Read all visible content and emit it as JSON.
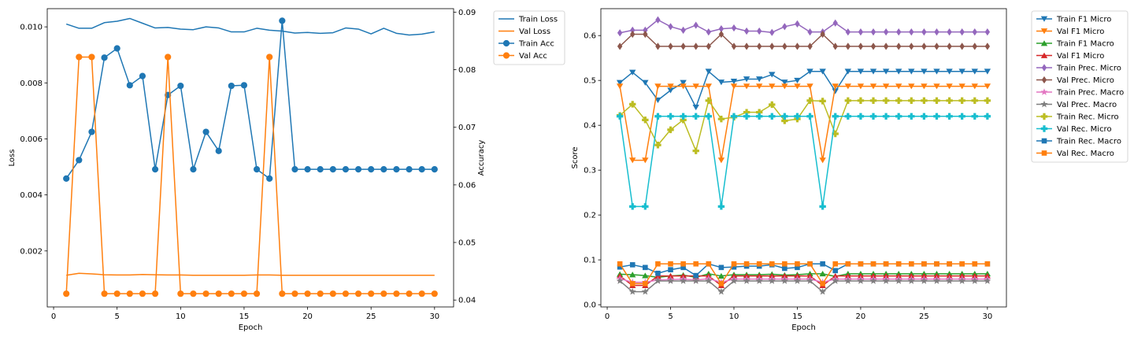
{
  "chart_data": [
    {
      "type": "line",
      "xlabel": "Epoch",
      "ylabel": "Loss",
      "ylabel_right": "Accuracy",
      "xlim": [
        -0.5,
        31.5
      ],
      "ylim": [
        0.0,
        0.01065
      ],
      "ylim_right": [
        0.0388,
        0.0906
      ],
      "xticks": [
        "0",
        "5",
        "10",
        "15",
        "20",
        "25",
        "30"
      ],
      "yticks": [
        "0.002",
        "0.004",
        "0.006",
        "0.008",
        "0.010"
      ],
      "yticks_right": [
        "0.04",
        "0.05",
        "0.06",
        "0.07",
        "0.08",
        "0.09"
      ],
      "legend_position": "outside-top-right",
      "x": [
        1,
        2,
        3,
        4,
        5,
        6,
        7,
        8,
        9,
        10,
        11,
        12,
        13,
        14,
        15,
        16,
        17,
        18,
        19,
        20,
        21,
        22,
        23,
        24,
        25,
        26,
        27,
        28,
        29,
        30
      ],
      "series": [
        {
          "name": "Train Loss",
          "axis": "left",
          "color": "#1f77b4",
          "marker": "none",
          "values": [
            0.0101,
            0.00995,
            0.00995,
            0.01015,
            0.0102,
            0.0103,
            0.01013,
            0.00996,
            0.00998,
            0.00992,
            0.0099,
            0.01,
            0.00996,
            0.00982,
            0.00982,
            0.00995,
            0.00988,
            0.00985,
            0.00978,
            0.0098,
            0.00977,
            0.00979,
            0.00996,
            0.00992,
            0.00975,
            0.00995,
            0.00977,
            0.00971,
            0.00974,
            0.00982
          ]
        },
        {
          "name": "Val Loss",
          "axis": "left",
          "color": "#ff7f0e",
          "marker": "none",
          "values": [
            0.00113,
            0.0012,
            0.00118,
            0.00115,
            0.00114,
            0.00114,
            0.00116,
            0.00115,
            0.00114,
            0.00114,
            0.00113,
            0.00113,
            0.00113,
            0.00113,
            0.00113,
            0.00114,
            0.00114,
            0.00113,
            0.00113,
            0.00113,
            0.00113,
            0.00113,
            0.00113,
            0.00113,
            0.00113,
            0.00113,
            0.00113,
            0.00113,
            0.00113,
            0.00113
          ]
        },
        {
          "name": "Train Acc",
          "axis": "right",
          "color": "#1f77b4",
          "marker": "circle",
          "values": [
            0.0611,
            0.0643,
            0.0692,
            0.0821,
            0.0837,
            0.0773,
            0.0789,
            0.0627,
            0.0756,
            0.0772,
            0.0627,
            0.0692,
            0.0659,
            0.0772,
            0.0773,
            0.0627,
            0.0611,
            0.0885,
            0.0627,
            0.0627,
            0.0627,
            0.0627,
            0.0627,
            0.0627,
            0.0627,
            0.0627,
            0.0627,
            0.0627,
            0.0627,
            0.0627
          ]
        },
        {
          "name": "Val Acc",
          "axis": "right",
          "color": "#ff7f0e",
          "marker": "circle",
          "values": [
            0.0411,
            0.0822,
            0.0822,
            0.0411,
            0.0411,
            0.0411,
            0.0411,
            0.0411,
            0.0822,
            0.0411,
            0.0411,
            0.0411,
            0.0411,
            0.0411,
            0.0411,
            0.0411,
            0.0822,
            0.0411,
            0.0411,
            0.0411,
            0.0411,
            0.0411,
            0.0411,
            0.0411,
            0.0411,
            0.0411,
            0.0411,
            0.0411,
            0.0411,
            0.0411
          ]
        }
      ]
    },
    {
      "type": "line",
      "xlabel": "Epoch",
      "ylabel": "Score",
      "xlim": [
        -0.5,
        31.5
      ],
      "ylim": [
        -0.005,
        0.66
      ],
      "xticks": [
        "0",
        "5",
        "10",
        "15",
        "20",
        "25",
        "30"
      ],
      "yticks": [
        "0.0",
        "0.1",
        "0.2",
        "0.3",
        "0.4",
        "0.5",
        "0.6"
      ],
      "legend_position": "outside-top-right",
      "x": [
        1,
        2,
        3,
        4,
        5,
        6,
        7,
        8,
        9,
        10,
        11,
        12,
        13,
        14,
        15,
        16,
        17,
        18,
        19,
        20,
        21,
        22,
        23,
        24,
        25,
        26,
        27,
        28,
        29,
        30
      ],
      "series": [
        {
          "name": "Train F1 Micro",
          "color": "#1f77b4",
          "marker": "tri_down",
          "values": [
            0.495,
            0.518,
            0.495,
            0.456,
            0.478,
            0.495,
            0.44,
            0.52,
            0.496,
            0.498,
            0.503,
            0.503,
            0.513,
            0.496,
            0.5,
            0.52,
            0.52,
            0.476,
            0.52,
            0.52,
            0.52,
            0.52,
            0.52,
            0.52,
            0.52,
            0.52,
            0.52,
            0.52,
            0.52,
            0.52
          ]
        },
        {
          "name": "Val F1 Micro",
          "color": "#ff7f0e",
          "marker": "tri_down",
          "values": [
            0.487,
            0.322,
            0.322,
            0.487,
            0.487,
            0.487,
            0.487,
            0.487,
            0.322,
            0.487,
            0.487,
            0.487,
            0.487,
            0.487,
            0.487,
            0.487,
            0.322,
            0.487,
            0.487,
            0.487,
            0.487,
            0.487,
            0.487,
            0.487,
            0.487,
            0.487,
            0.487,
            0.487,
            0.487,
            0.487
          ]
        },
        {
          "name": "Train F1 Macro",
          "color": "#2ca02c",
          "marker": "tri_up",
          "values": [
            0.068,
            0.067,
            0.065,
            0.061,
            0.064,
            0.066,
            0.061,
            0.069,
            0.064,
            0.067,
            0.067,
            0.067,
            0.068,
            0.066,
            0.067,
            0.069,
            0.069,
            0.063,
            0.069,
            0.069,
            0.069,
            0.069,
            0.069,
            0.069,
            0.069,
            0.069,
            0.069,
            0.069,
            0.069,
            0.069
          ]
        },
        {
          "name": "Val F1 Micro",
          "color": "#d62728",
          "marker": "tri_up",
          "values": [
            0.064,
            0.043,
            0.043,
            0.064,
            0.064,
            0.064,
            0.064,
            0.064,
            0.043,
            0.064,
            0.064,
            0.064,
            0.064,
            0.064,
            0.064,
            0.064,
            0.043,
            0.064,
            0.064,
            0.064,
            0.064,
            0.064,
            0.064,
            0.064,
            0.064,
            0.064,
            0.064,
            0.064,
            0.064,
            0.064
          ]
        },
        {
          "name": "Train Prec. Micro",
          "color": "#9467bd",
          "marker": "thin_diamond",
          "values": [
            0.606,
            0.612,
            0.612,
            0.635,
            0.62,
            0.612,
            0.623,
            0.608,
            0.615,
            0.617,
            0.61,
            0.61,
            0.607,
            0.62,
            0.626,
            0.608,
            0.608,
            0.628,
            0.608,
            0.608,
            0.608,
            0.608,
            0.608,
            0.608,
            0.608,
            0.608,
            0.608,
            0.608,
            0.608,
            0.608
          ]
        },
        {
          "name": "Val Prec. Micro",
          "color": "#8c564b",
          "marker": "thin_diamond",
          "values": [
            0.576,
            0.603,
            0.603,
            0.576,
            0.576,
            0.576,
            0.576,
            0.576,
            0.603,
            0.576,
            0.576,
            0.576,
            0.576,
            0.576,
            0.576,
            0.576,
            0.603,
            0.576,
            0.576,
            0.576,
            0.576,
            0.576,
            0.576,
            0.576,
            0.576,
            0.576,
            0.576,
            0.576,
            0.576,
            0.576
          ]
        },
        {
          "name": "Train Prec. Macro",
          "color": "#e377c2",
          "marker": "star",
          "values": [
            0.058,
            0.05,
            0.05,
            0.055,
            0.056,
            0.057,
            0.055,
            0.058,
            0.05,
            0.057,
            0.057,
            0.057,
            0.057,
            0.057,
            0.057,
            0.057,
            0.05,
            0.057,
            0.057,
            0.057,
            0.057,
            0.057,
            0.057,
            0.057,
            0.057,
            0.057,
            0.057,
            0.057,
            0.057,
            0.057
          ]
        },
        {
          "name": "Val Prec. Macro",
          "color": "#7f7f7f",
          "marker": "star",
          "values": [
            0.053,
            0.029,
            0.029,
            0.053,
            0.053,
            0.053,
            0.053,
            0.053,
            0.029,
            0.053,
            0.053,
            0.053,
            0.053,
            0.053,
            0.053,
            0.053,
            0.029,
            0.053,
            0.053,
            0.053,
            0.053,
            0.053,
            0.053,
            0.053,
            0.053,
            0.053,
            0.053,
            0.053,
            0.053,
            0.053
          ]
        },
        {
          "name": "Train Rec. Micro",
          "color": "#bcbd22",
          "marker": "plus",
          "values": [
            0.422,
            0.447,
            0.412,
            0.356,
            0.39,
            0.412,
            0.343,
            0.455,
            0.414,
            0.418,
            0.429,
            0.429,
            0.446,
            0.41,
            0.414,
            0.455,
            0.454,
            0.381,
            0.455,
            0.455,
            0.455,
            0.455,
            0.455,
            0.455,
            0.455,
            0.455,
            0.455,
            0.455,
            0.455,
            0.455
          ]
        },
        {
          "name": "Val Rec. Micro",
          "color": "#17becf",
          "marker": "plus",
          "values": [
            0.42,
            0.219,
            0.219,
            0.42,
            0.42,
            0.42,
            0.42,
            0.42,
            0.219,
            0.42,
            0.42,
            0.42,
            0.42,
            0.42,
            0.42,
            0.42,
            0.219,
            0.42,
            0.42,
            0.42,
            0.42,
            0.42,
            0.42,
            0.42,
            0.42,
            0.42,
            0.42,
            0.42,
            0.42,
            0.42
          ]
        },
        {
          "name": "Train Rec. Macro",
          "color": "#1f77b4",
          "marker": "square",
          "values": [
            0.084,
            0.089,
            0.083,
            0.07,
            0.078,
            0.083,
            0.065,
            0.091,
            0.083,
            0.084,
            0.086,
            0.086,
            0.089,
            0.081,
            0.083,
            0.091,
            0.091,
            0.076,
            0.091,
            0.091,
            0.091,
            0.091,
            0.091,
            0.091,
            0.091,
            0.091,
            0.091,
            0.091,
            0.091,
            0.091
          ]
        },
        {
          "name": "Val Rec. Macro",
          "color": "#ff7f0e",
          "marker": "square",
          "values": [
            0.091,
            0.047,
            0.047,
            0.091,
            0.091,
            0.091,
            0.091,
            0.091,
            0.047,
            0.091,
            0.091,
            0.091,
            0.091,
            0.091,
            0.091,
            0.091,
            0.047,
            0.091,
            0.091,
            0.091,
            0.091,
            0.091,
            0.091,
            0.091,
            0.091,
            0.091,
            0.091,
            0.091,
            0.091,
            0.091
          ]
        }
      ]
    }
  ]
}
